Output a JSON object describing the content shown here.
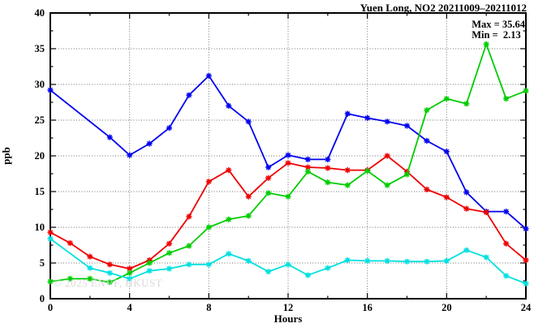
{
  "header": {
    "title": "Yuen Long, NO2 20211009–20211012"
  },
  "annotations": {
    "max_label": "Max = 35.64",
    "min_label": "Min =  2.13"
  },
  "watermark": "© 2025 ENVF, HKUST",
  "chart_data": {
    "type": "line",
    "title": "Yuen Long, NO2 20211009–20211012",
    "xlabel": "Hours",
    "ylabel": "ppb",
    "xlim": [
      0,
      24
    ],
    "ylim": [
      0,
      40
    ],
    "xticks_major": [
      0,
      4,
      8,
      12,
      16,
      20,
      24
    ],
    "xtick_minor_step": 2,
    "yticks_major": [
      0,
      5,
      10,
      15,
      20,
      25,
      30,
      35,
      40
    ],
    "ytick_minor_step": 2.5,
    "grid": true,
    "legend": "none",
    "marker": "asterisk",
    "x": [
      0,
      1,
      2,
      3,
      4,
      5,
      6,
      7,
      8,
      9,
      10,
      11,
      12,
      13,
      14,
      15,
      16,
      17,
      18,
      19,
      20,
      21,
      22,
      23,
      24
    ],
    "series": [
      {
        "name": "day1-blue",
        "color": "#0000ee",
        "values": [
          29.2,
          null,
          null,
          22.6,
          20.1,
          21.7,
          23.9,
          28.5,
          31.2,
          27.0,
          24.8,
          18.4,
          20.1,
          19.5,
          19.5,
          25.9,
          25.3,
          24.8,
          24.2,
          22.1,
          20.6,
          14.9,
          12.2,
          12.2,
          9.8
        ]
      },
      {
        "name": "day2-red",
        "color": "#ee0000",
        "values": [
          9.3,
          7.8,
          5.9,
          4.8,
          4.2,
          5.4,
          7.7,
          11.5,
          16.4,
          18.0,
          14.3,
          16.9,
          19.0,
          18.4,
          18.3,
          18.0,
          18.0,
          20.0,
          17.8,
          15.3,
          14.2,
          12.6,
          12.1,
          7.7,
          5.4
        ]
      },
      {
        "name": "day3-green",
        "color": "#00cd00",
        "values": [
          2.4,
          2.8,
          2.8,
          2.3,
          3.6,
          5.0,
          6.4,
          7.4,
          10.0,
          11.1,
          11.6,
          14.8,
          14.3,
          17.8,
          16.3,
          15.9,
          17.9,
          15.9,
          17.4,
          26.4,
          28.0,
          27.3,
          35.64,
          28.0,
          29.1
        ]
      },
      {
        "name": "day4-cyan",
        "color": "#00e0e0",
        "values": [
          8.4,
          null,
          4.3,
          3.6,
          2.8,
          3.9,
          4.2,
          4.8,
          4.8,
          6.3,
          5.3,
          3.8,
          4.8,
          3.3,
          4.3,
          5.4,
          5.3,
          5.3,
          5.2,
          5.2,
          5.3,
          6.8,
          5.8,
          3.2,
          2.13
        ]
      }
    ],
    "max": 35.64,
    "min": 2.13
  }
}
